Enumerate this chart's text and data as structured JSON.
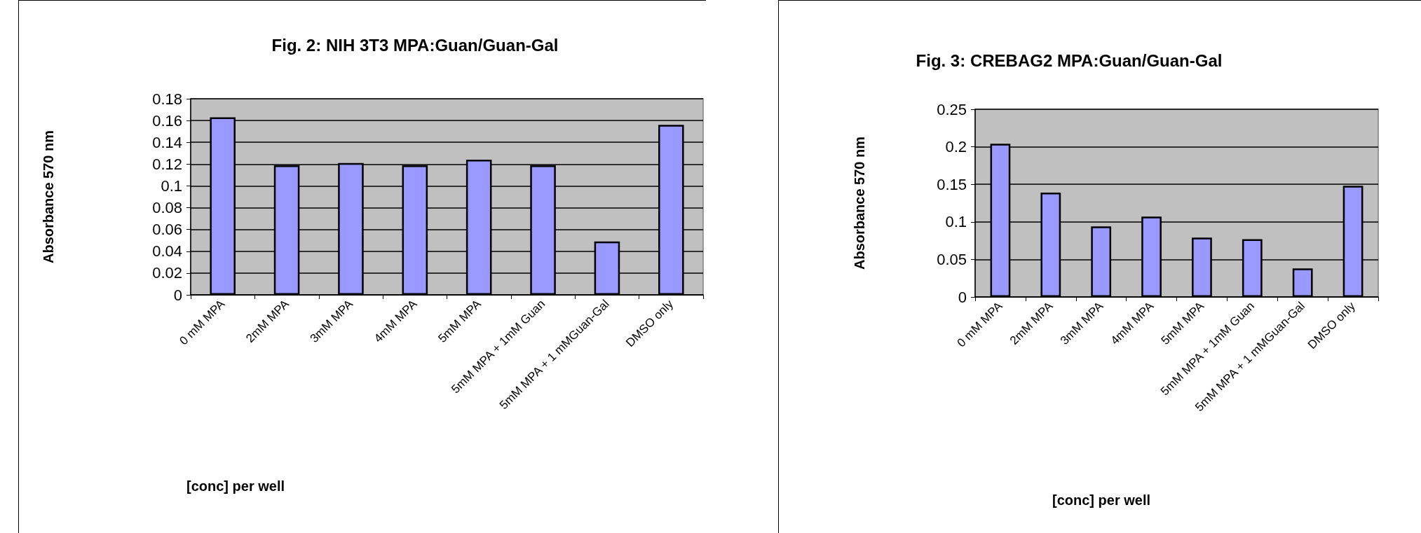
{
  "chart_data": [
    {
      "type": "bar",
      "title": "Fig. 2: NIH 3T3 MPA:Guan/Guan-Gal",
      "xlabel": "[conc] per well",
      "ylabel": "Absorbance 570 nm",
      "categories": [
        "0 mM MPA",
        "2mM MPA",
        "3mM MPA",
        "4mM MPA",
        "5mM MPA",
        "5mM MPA + 1mM Guan",
        "5mM MPA + 1 mMGuan-Gal",
        "DMSO only"
      ],
      "values": [
        0.163,
        0.119,
        0.121,
        0.119,
        0.124,
        0.119,
        0.049,
        0.156
      ],
      "color": "#9999ff",
      "ylim": [
        0,
        0.18
      ],
      "yticks": [
        0,
        0.02,
        0.04,
        0.06,
        0.08,
        0.1,
        0.12,
        0.14,
        0.16,
        0.18
      ],
      "grid": "y"
    },
    {
      "type": "bar",
      "title": "Fig. 3: CREBAG2 MPA:Guan/Guan-Gal",
      "xlabel": "[conc] per well",
      "ylabel": "Absorbance 570 nm",
      "categories": [
        "0 mM MPA",
        "2mM MPA",
        "3mM MPA",
        "4mM MPA",
        "5mM MPA",
        "5mM MPA + 1mM Guan",
        "5mM MPA + 1 mMGuan-Gal",
        "DMSO only"
      ],
      "values": [
        0.204,
        0.139,
        0.094,
        0.107,
        0.079,
        0.077,
        0.038,
        0.148
      ],
      "color": "#9999ff",
      "ylim": [
        0,
        0.25
      ],
      "yticks": [
        0,
        0.05,
        0.1,
        0.15,
        0.2,
        0.25
      ],
      "grid": "y"
    }
  ]
}
